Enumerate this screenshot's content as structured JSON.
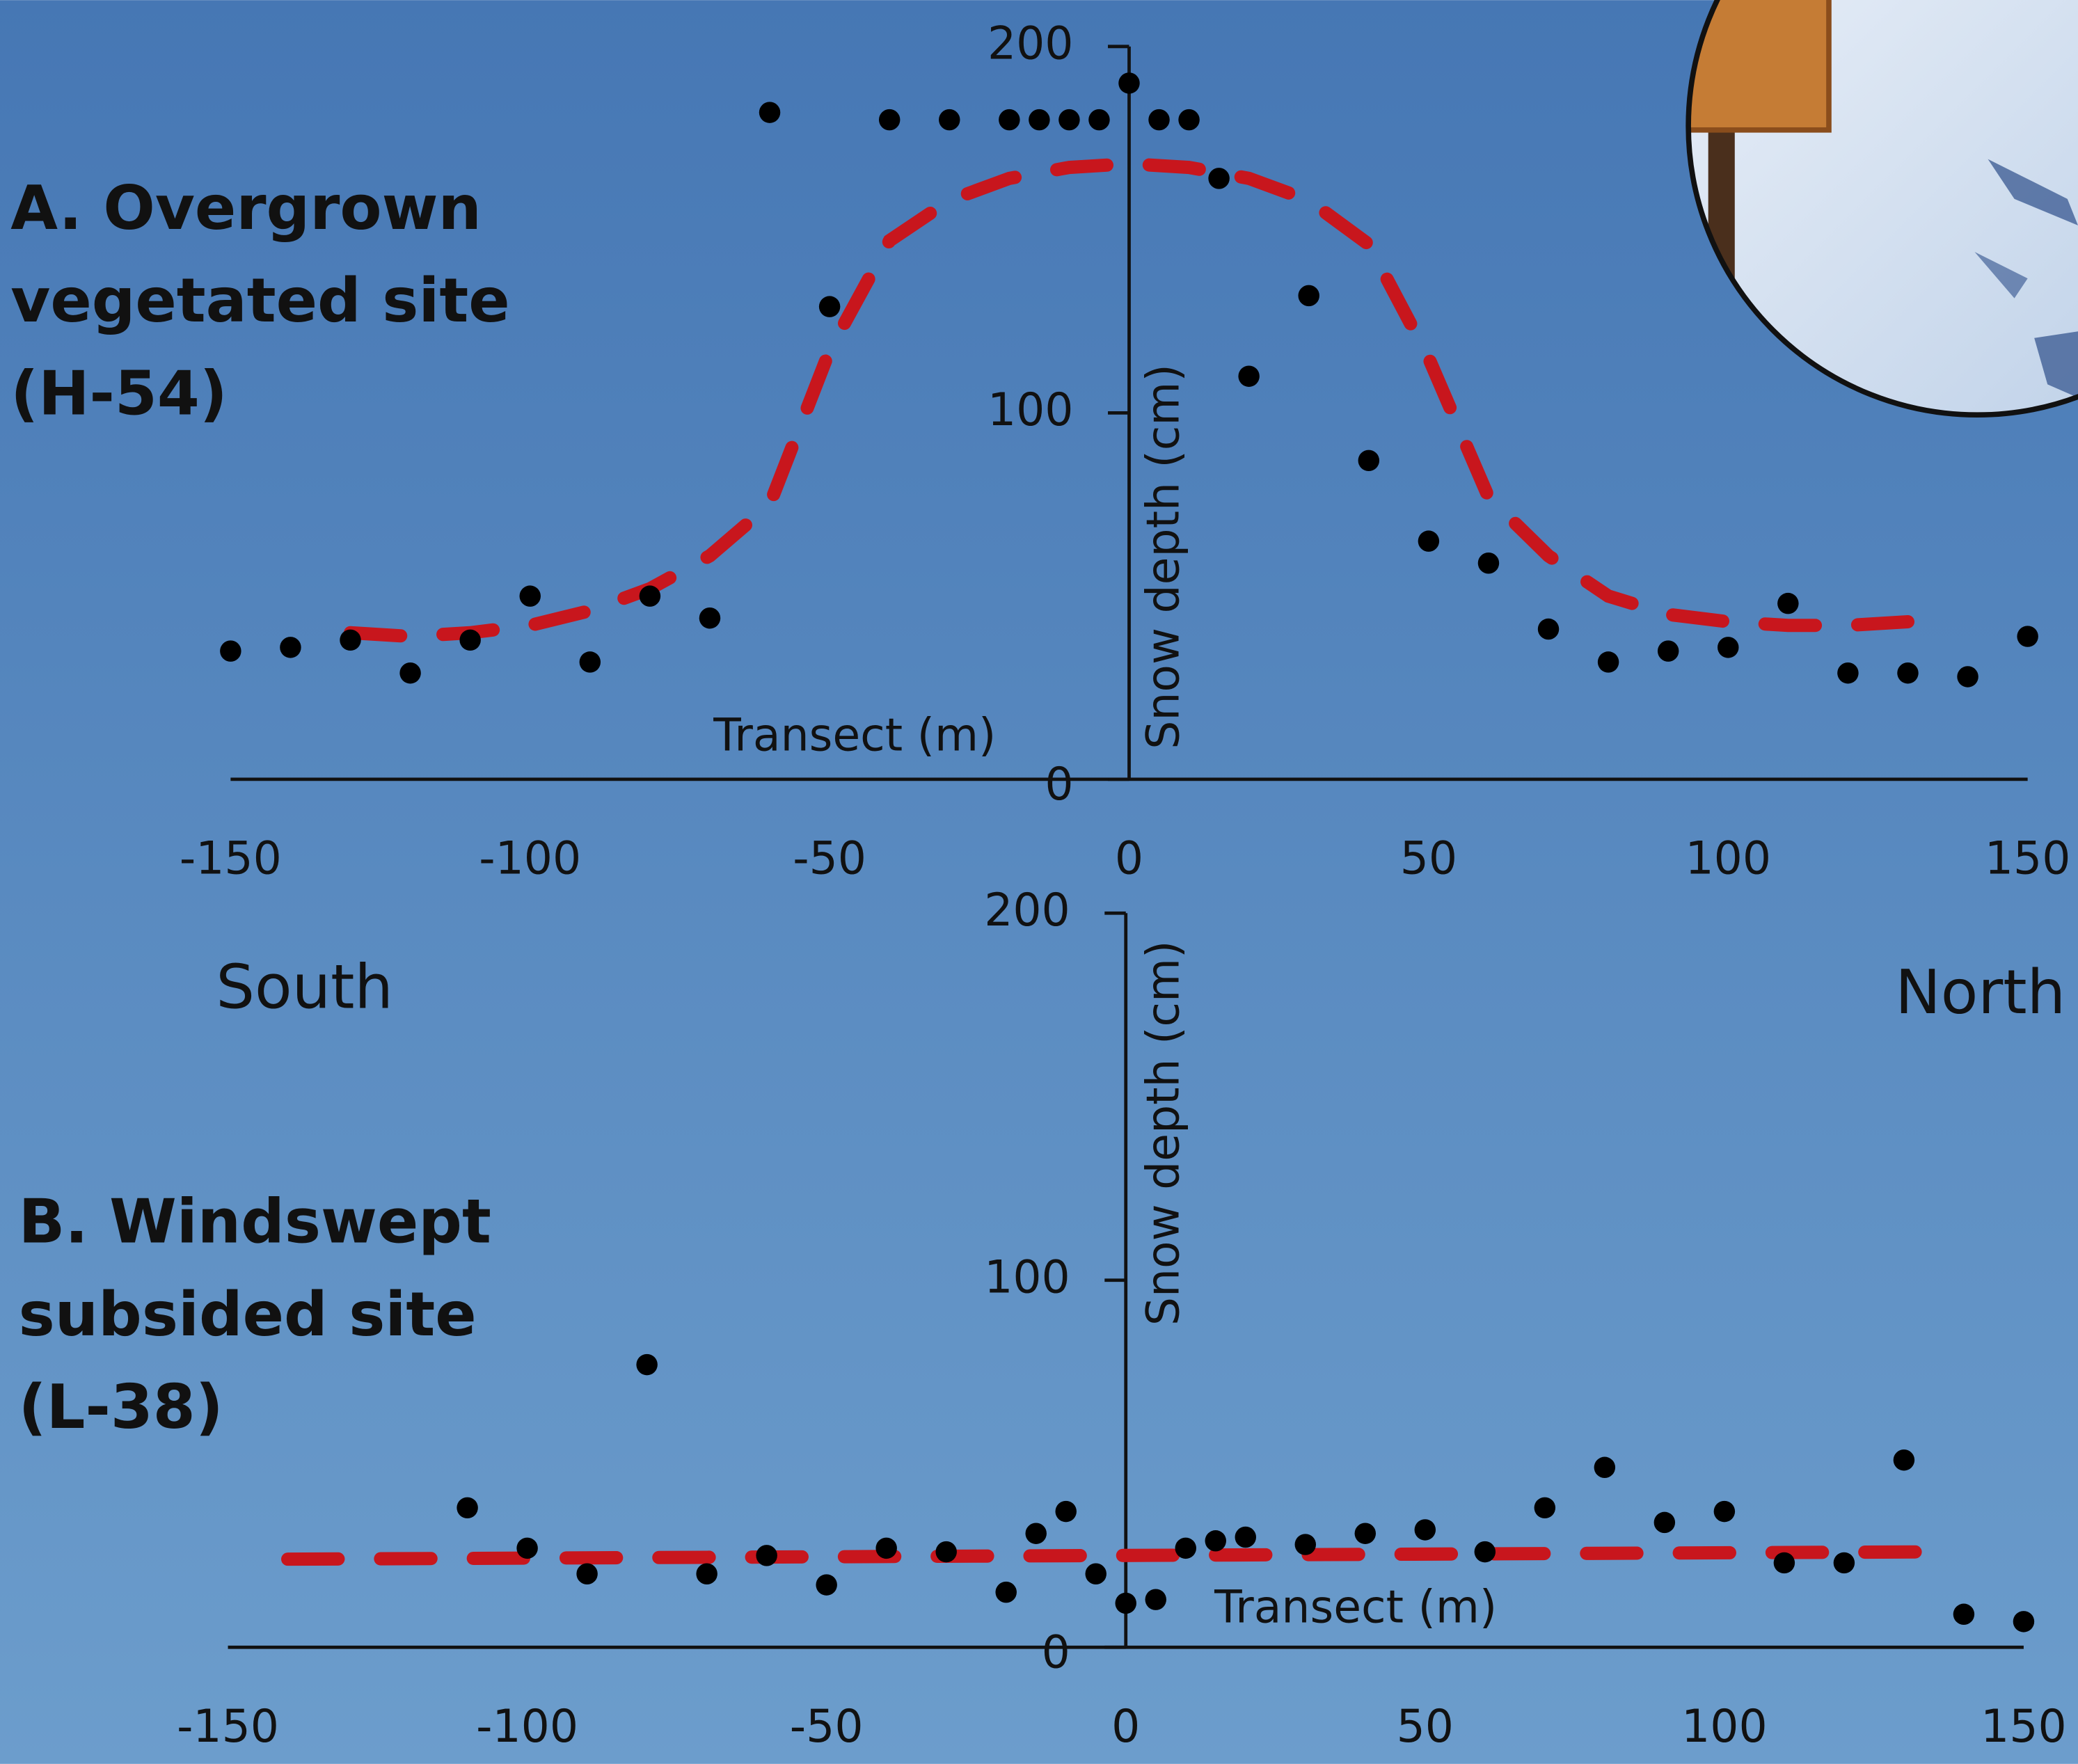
{
  "chart_data": [
    {
      "type": "scatter",
      "title": [
        "A. Overgrown",
        "vegetated site",
        "(H-54)"
      ],
      "xlabel": "Transect (m)",
      "ylabel": "Snow depth (cm)",
      "annotations": [
        "South",
        "North"
      ],
      "xlim": [
        -150,
        150
      ],
      "ylim": [
        0,
        200
      ],
      "xticks": [
        -150,
        -100,
        -50,
        0,
        50,
        100,
        150
      ],
      "yticks": [
        0,
        100,
        200
      ],
      "points": {
        "color": "#000000",
        "x": [
          -150,
          -140,
          -130,
          -120,
          -110,
          -100,
          -90,
          -80,
          -70,
          -60,
          -50,
          -40,
          -30,
          -20,
          -15,
          -10,
          -5,
          0,
          5,
          10,
          15,
          20,
          30,
          40,
          50,
          60,
          70,
          80,
          90,
          100,
          110,
          120,
          130,
          140,
          150
        ],
        "y": [
          35,
          36,
          38,
          29,
          38,
          50,
          32,
          50,
          44,
          182,
          129,
          180,
          180,
          180,
          180,
          180,
          180,
          190,
          180,
          180,
          164,
          110,
          132,
          87,
          65,
          59,
          41,
          32,
          35,
          36,
          48,
          29,
          29,
          28,
          39
        ]
      },
      "fit": {
        "color": "#c8161d",
        "x": [
          -130,
          -120,
          -110,
          -100,
          -90,
          -80,
          -70,
          -60,
          -50,
          -40,
          -30,
          -20,
          -10,
          0,
          10,
          20,
          30,
          40,
          50,
          60,
          70,
          80,
          90,
          100,
          110,
          120,
          130
        ],
        "y": [
          40,
          39,
          40,
          42,
          46,
          52,
          61,
          75,
          117,
          147,
          158,
          164,
          167,
          168,
          167,
          164,
          158,
          146,
          115,
          77,
          61,
          50,
          45,
          43,
          42,
          42,
          43
        ]
      }
    },
    {
      "type": "scatter",
      "title": [
        "B. Windswept",
        "subsided site",
        "(L-38)"
      ],
      "xlabel": "Transect (m)",
      "ylabel": "Snow depth (cm)",
      "xlim": [
        -150,
        150
      ],
      "ylim": [
        0,
        200
      ],
      "xticks": [
        -150,
        -100,
        -50,
        0,
        50,
        100,
        150
      ],
      "yticks": [
        0,
        100,
        200
      ],
      "points": {
        "color": "#000000",
        "x": [
          -110,
          -100,
          -90,
          -80,
          -70,
          -60,
          -50,
          -40,
          -30,
          -20,
          -15,
          -10,
          -5,
          0,
          5,
          10,
          15,
          20,
          30,
          40,
          50,
          60,
          70,
          80,
          90,
          100,
          110,
          120,
          130,
          140,
          150
        ],
        "y": [
          38,
          27,
          20,
          77,
          20,
          25,
          17,
          27,
          26,
          15,
          31,
          37,
          20,
          12,
          13,
          27,
          29,
          30,
          28,
          31,
          32,
          26,
          38,
          49,
          34,
          37,
          23,
          23,
          51,
          9,
          7
        ]
      },
      "fit": {
        "color": "#c8161d",
        "x": [
          -140,
          135
        ],
        "y": [
          24,
          26
        ]
      }
    }
  ]
}
